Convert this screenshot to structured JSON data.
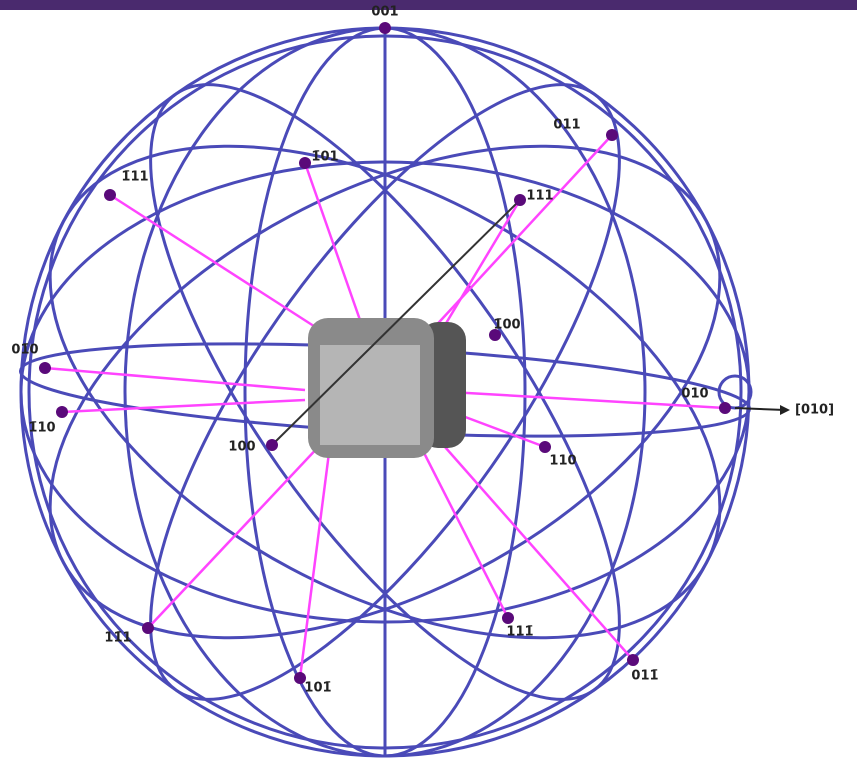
{
  "diagram": {
    "poles": [
      {
        "label": "001"
      },
      {
        "label": "011"
      },
      {
        "label": "111"
      },
      {
        "label": "1̄01"
      },
      {
        "label": "1̄11"
      },
      {
        "label": "1̄00"
      },
      {
        "label": "01̄0"
      },
      {
        "label": "1̄10"
      },
      {
        "label": "100"
      },
      {
        "label": "110"
      },
      {
        "label": "010"
      },
      {
        "label": "11̄1"
      },
      {
        "label": "101̄"
      },
      {
        "label": "111̄"
      },
      {
        "label": "011̄"
      }
    ],
    "axis_label": "[010]"
  }
}
